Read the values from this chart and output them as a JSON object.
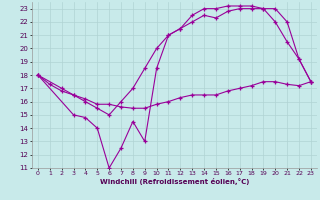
{
  "xlabel": "Windchill (Refroidissement éolien,°C)",
  "bg_color": "#c8eaea",
  "grid_color": "#b0d4d4",
  "line_color": "#990099",
  "xlim": [
    -0.5,
    23.5
  ],
  "ylim": [
    11,
    23.5
  ],
  "xticks": [
    0,
    1,
    2,
    3,
    4,
    5,
    6,
    7,
    8,
    9,
    10,
    11,
    12,
    13,
    14,
    15,
    16,
    17,
    18,
    19,
    20,
    21,
    22,
    23
  ],
  "yticks": [
    11,
    12,
    13,
    14,
    15,
    16,
    17,
    18,
    19,
    20,
    21,
    22,
    23
  ],
  "line1_x": [
    0,
    1,
    2,
    3,
    4,
    5,
    6,
    7,
    8,
    9,
    10,
    11,
    12,
    13,
    14,
    15,
    16,
    17,
    18,
    19,
    20,
    21,
    22,
    23
  ],
  "line1_y": [
    18,
    17.3,
    16.8,
    16.5,
    16.2,
    15.8,
    15.8,
    15.6,
    15.5,
    15.5,
    15.8,
    16.0,
    16.3,
    16.5,
    16.5,
    16.5,
    16.8,
    17.0,
    17.2,
    17.5,
    17.5,
    17.3,
    17.2,
    17.5
  ],
  "line2_x": [
    0,
    2,
    3,
    4,
    5,
    6,
    7,
    8,
    9,
    10,
    11,
    12,
    13,
    14,
    15,
    16,
    17,
    18,
    19,
    20,
    21,
    22,
    23
  ],
  "line2_y": [
    18,
    17,
    16.5,
    16,
    15.5,
    15,
    16,
    17,
    18.5,
    20,
    21,
    21.5,
    22,
    22.5,
    22.3,
    22.8,
    23,
    23,
    23,
    22,
    20.5,
    19.2,
    17.5
  ],
  "line3_x": [
    0,
    3,
    4,
    5,
    6,
    7,
    8,
    9,
    10,
    11,
    12,
    13,
    14,
    15,
    16,
    17,
    18,
    19,
    20,
    21,
    22,
    23
  ],
  "line3_y": [
    18,
    15,
    14.8,
    14,
    11,
    12.5,
    14.5,
    13,
    18.5,
    21,
    21.5,
    22.5,
    23,
    23,
    23.2,
    23.2,
    23.2,
    23,
    23,
    22,
    19.2,
    17.5
  ]
}
